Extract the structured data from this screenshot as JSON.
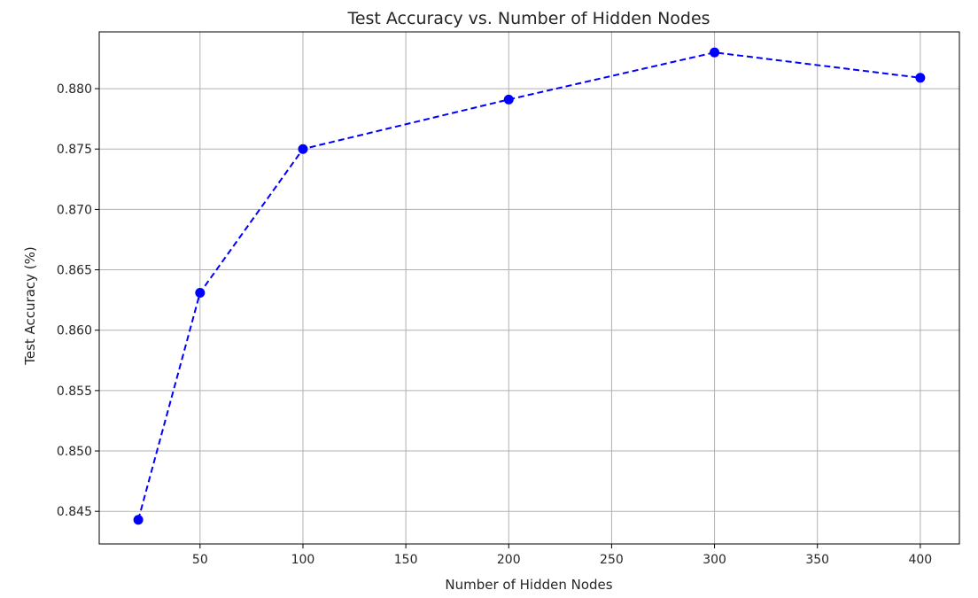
{
  "chart_data": {
    "type": "line",
    "title": "Test Accuracy vs. Number of Hidden Nodes",
    "xlabel": "Number of Hidden Nodes",
    "ylabel": "Test Accuracy (%)",
    "x": [
      20,
      50,
      100,
      200,
      300,
      400
    ],
    "series": [
      {
        "name": "Test Accuracy",
        "values": [
          0.8443,
          0.8631,
          0.875,
          0.8791,
          0.883,
          0.8809
        ],
        "color": "#0000ff",
        "line_style": "dashed",
        "marker": "circle"
      }
    ],
    "xlim": [
      1,
      419
    ],
    "ylim": [
      0.8423,
      0.8847
    ],
    "xticks": [
      50,
      100,
      150,
      200,
      250,
      300,
      350,
      400
    ],
    "xtick_labels": [
      "50",
      "100",
      "150",
      "200",
      "250",
      "300",
      "350",
      "400"
    ],
    "yticks": [
      0.845,
      0.85,
      0.855,
      0.86,
      0.865,
      0.87,
      0.875,
      0.88
    ],
    "ytick_labels": [
      "0.845",
      "0.850",
      "0.855",
      "0.860",
      "0.865",
      "0.870",
      "0.875",
      "0.880"
    ],
    "grid": true,
    "colors": {
      "grid": "#b0b0b0",
      "axes": "#000000",
      "text": "#262626"
    }
  }
}
